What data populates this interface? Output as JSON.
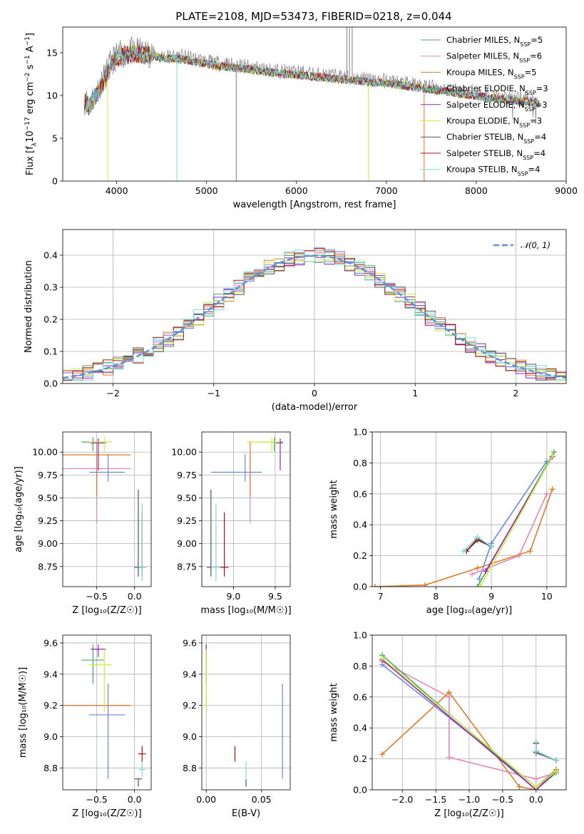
{
  "figure_title": "PLATE=2108, MJD=53473, FIBERID=0218, z=0.044",
  "colors": {
    "Chabrier MILES": "#6688dd",
    "Salpeter MILES": "#e088b8",
    "Kroupa MILES": "#e07828",
    "Chabrier ELODIE": "#44aa66",
    "Salpeter ELODIE": "#9922bb",
    "Kroupa ELODIE": "#ccee33",
    "Chabrier STELIB": "#555555",
    "Salpeter STELIB": "#aa1111",
    "Kroupa STELIB": "#77dddd",
    "data": "#808080",
    "gaussian": "#6090d8"
  },
  "chart_data": [
    {
      "panel": "spectrum",
      "type": "line",
      "title": "PLATE=2108, MJD=53473, FIBERID=0218, z=0.044",
      "xlabel": "wavelength [Angstrom, rest frame]",
      "ylabel_parts": [
        "Flux [f",
        "λ",
        "10",
        "−17",
        " erg cm",
        "−2",
        " s",
        "−1",
        " A",
        "−1",
        "]"
      ],
      "xlim": [
        3400,
        9000
      ],
      "ylim": [
        0,
        18
      ],
      "xticks": [
        4000,
        5000,
        6000,
        7000,
        8000,
        9000
      ],
      "yticks": [
        0,
        5,
        10,
        15
      ],
      "grid": false,
      "legend_position": "top-right",
      "legend": [
        {
          "name": "Chabrier MILES",
          "nssp": "5"
        },
        {
          "name": "Salpeter MILES",
          "nssp": "6"
        },
        {
          "name": "Kroupa MILES",
          "nssp": "5"
        },
        {
          "name": "Chabrier ELODIE",
          "nssp": "3"
        },
        {
          "name": "Salpeter ELODIE",
          "nssp": "3"
        },
        {
          "name": "Kroupa ELODIE",
          "nssp": "3"
        },
        {
          "name": "Chabrier STELIB",
          "nssp": "4"
        },
        {
          "name": "Salpeter STELIB",
          "nssp": "4"
        },
        {
          "name": "Kroupa STELIB",
          "nssp": "4"
        }
      ],
      "continuum": {
        "x": [
          3650,
          3700,
          3800,
          3850,
          3900,
          3950,
          4000,
          4100,
          4200,
          4300,
          4400,
          4500,
          4700,
          4900,
          5100,
          5300,
          5500,
          5700,
          5900,
          6100,
          6300,
          6500,
          6700,
          6900,
          7100,
          7300,
          7500,
          7700,
          7900,
          8100,
          8300,
          8500,
          8700
        ],
        "y": [
          9.5,
          9.0,
          11.0,
          11.8,
          13.0,
          14.0,
          14.6,
          15.0,
          15.2,
          15.0,
          15.0,
          14.6,
          14.6,
          14.2,
          13.8,
          13.6,
          13.3,
          13.0,
          12.8,
          12.6,
          12.4,
          12.2,
          12.0,
          11.8,
          11.6,
          11.3,
          11.0,
          10.7,
          10.4,
          10.1,
          9.9,
          9.6,
          9.4
        ]
      },
      "model_drops": {
        "Kroupa ELODIE": [
          3900,
          6800
        ],
        "Kroupa STELIB": [
          4670
        ],
        "Kroupa MILES": [
          7420
        ]
      },
      "data_spikes": [
        6560,
        6590,
        6620,
        5330
      ]
    },
    {
      "panel": "residuals",
      "type": "histogram",
      "xlabel": "(data-model)/error",
      "ylabel": "Normed distribution",
      "xlim": [
        -2.5,
        2.5
      ],
      "ylim": [
        0,
        0.48
      ],
      "xticks": [
        -2,
        -1,
        0,
        1,
        2
      ],
      "yticks": [
        0.0,
        0.1,
        0.2,
        0.3,
        0.4
      ],
      "grid": true,
      "legend_position": "top-right",
      "legend_label": "𝒩(0, 1)",
      "bin_width": 0.1
    },
    {
      "panel": "age-vs-Z",
      "type": "scatter",
      "xlabel": "Z [log₁₀(Z/Z☉)]",
      "ylabel": "age  [log₁₀(age/yr)]",
      "xlim": [
        -0.95,
        0.22
      ],
      "ylim": [
        8.53,
        10.22
      ],
      "xticks": [
        -0.5,
        0.0
      ],
      "yticks": [
        8.75,
        9.0,
        9.25,
        9.5,
        9.75,
        10.0
      ],
      "grid": true
    },
    {
      "panel": "age-vs-mass",
      "type": "scatter",
      "xlabel": "mass [log₁₀(M/M☉)]",
      "xlim": [
        8.62,
        9.68
      ],
      "ylim": [
        8.53,
        10.22
      ],
      "xticks": [
        9.0,
        9.5
      ],
      "yticks": [
        8.75,
        9.0,
        9.25,
        9.5,
        9.75,
        10.0
      ],
      "grid": true
    },
    {
      "panel": "weight-vs-age",
      "type": "line",
      "xlabel": "age  [log₁₀(age/yr)]",
      "ylabel": "mass weight",
      "xlim": [
        6.85,
        10.35
      ],
      "ylim": [
        0,
        1
      ],
      "xticks": [
        7,
        8,
        9,
        10
      ],
      "yticks": [
        0.0,
        0.2,
        0.4,
        0.6,
        0.8,
        1.0
      ],
      "grid": true
    },
    {
      "panel": "mass-vs-Z",
      "type": "scatter",
      "xlabel": "Z [log₁₀(Z/Z☉)]",
      "ylabel": "mass [log₁₀(M/M☉)]",
      "xlim": [
        -0.95,
        0.22
      ],
      "ylim": [
        8.66,
        9.65
      ],
      "xticks": [
        -0.5,
        0.0
      ],
      "yticks": [
        8.8,
        9.0,
        9.2,
        9.4,
        9.6
      ],
      "grid": true
    },
    {
      "panel": "mass-vs-EBV",
      "type": "scatter",
      "xlabel": "E(B-V)",
      "xlim": [
        -0.004,
        0.076
      ],
      "ylim": [
        8.66,
        9.65
      ],
      "xticks": [
        0.0,
        0.05
      ],
      "yticks": [
        8.8,
        9.0,
        9.2,
        9.4,
        9.6
      ],
      "grid": true
    },
    {
      "panel": "weight-vs-Z",
      "type": "line",
      "xlabel": "Z [log₁₀(Z/Z☉)]",
      "ylabel": "mass weight",
      "xlim": [
        -2.45,
        0.45
      ],
      "ylim": [
        0,
        1
      ],
      "xticks": [
        -2.0,
        -1.5,
        -1.0,
        -0.5,
        0.0
      ],
      "yticks": [
        0.0,
        0.2,
        0.4,
        0.6,
        0.8,
        1.0
      ],
      "grid": true
    }
  ],
  "fits": [
    {
      "name": "Chabrier MILES",
      "Z": -0.35,
      "Zlo": 0.25,
      "Zhi": 0.22,
      "age": 9.78,
      "agelo": 0.1,
      "agehi": 0.2,
      "mass": 9.14,
      "masslo": 0.41,
      "masshi": 0.2,
      "ebv": 0.069,
      "ebvlo": 0.0,
      "ebvhi": 0.0,
      "w_age": [
        [
          8.78,
          0.05
        ],
        [
          9.0,
          0.28
        ],
        [
          10.0,
          0.81
        ]
      ],
      "w_Z": [
        [
          -2.3,
          0.81
        ],
        [
          0.0,
          0.02
        ],
        [
          0.3,
          0.13
        ]
      ]
    },
    {
      "name": "Salpeter MILES",
      "Z": -0.5,
      "Zlo": 0.45,
      "Zhi": 0.45,
      "age": 9.82,
      "agelo": 0.6,
      "agehi": 0.15,
      "mass": 9.2,
      "masslo": 0.0,
      "masshi": 0.0,
      "ebv": 0.072,
      "ebvlo": 0.0,
      "ebvhi": 0.0,
      "w_age": [
        [
          8.65,
          0.08
        ],
        [
          9.5,
          0.2
        ],
        [
          10.0,
          0.6
        ]
      ],
      "w_Z": [
        [
          -2.3,
          0.83
        ],
        [
          -1.3,
          0.6
        ],
        [
          -1.3,
          0.21
        ],
        [
          0.0,
          0.07
        ],
        [
          0.3,
          0.11
        ]
      ]
    },
    {
      "name": "Kroupa MILES",
      "Z": -0.5,
      "Zlo": 0.45,
      "Zhi": 0.45,
      "age": 9.97,
      "agelo": 0.45,
      "agehi": 0.15,
      "mass": 9.2,
      "masslo": 0.0,
      "masshi": 0.0,
      "ebv": 0.07,
      "ebvlo": 0.0,
      "ebvhi": 0.0,
      "w_age": [
        [
          6.9,
          0.0
        ],
        [
          7.8,
          0.01
        ],
        [
          8.75,
          0.12
        ],
        [
          9.7,
          0.23
        ],
        [
          10.1,
          0.63
        ]
      ],
      "w_Z": [
        [
          -2.3,
          0.23
        ],
        [
          -1.3,
          0.63
        ],
        [
          -0.25,
          0.02
        ],
        [
          0.0,
          0.0
        ],
        [
          0.3,
          0.13
        ]
      ]
    },
    {
      "name": "Chabrier ELODIE",
      "Z": -0.55,
      "Zlo": 0.15,
      "Zhi": 0.15,
      "age": 10.11,
      "agelo": 0.1,
      "agehi": 0.05,
      "mass": 9.49,
      "masslo": 0.15,
      "masshi": 0.1,
      "ebv": 0.0,
      "ebvlo": 0.0,
      "ebvhi": 0.0,
      "w_age": [
        [
          8.75,
          0.0
        ],
        [
          10.13,
          0.87
        ]
      ],
      "w_Z": [
        [
          -2.3,
          0.87
        ],
        [
          0.0,
          0.0
        ],
        [
          0.3,
          0.11
        ]
      ]
    },
    {
      "name": "Salpeter ELODIE",
      "Z": -0.48,
      "Zlo": 0.1,
      "Zhi": 0.1,
      "age": 10.1,
      "agelo": 0.3,
      "agehi": 0.05,
      "mass": 9.56,
      "masslo": 0.05,
      "masshi": 0.03,
      "ebv": 0.0,
      "ebvlo": 0.0,
      "ebvhi": 0.0,
      "w_age": [
        [
          8.9,
          0.1
        ],
        [
          10.1,
          0.84
        ]
      ],
      "w_Z": [
        [
          -2.3,
          0.84
        ],
        [
          0.0,
          0.0
        ],
        [
          0.3,
          0.12
        ]
      ]
    },
    {
      "name": "Kroupa ELODIE",
      "Z": -0.4,
      "Zlo": 0.2,
      "Zhi": 0.1,
      "age": 10.11,
      "agelo": 0.1,
      "agehi": 0.05,
      "mass": 9.46,
      "masslo": 0.3,
      "masshi": 0.1,
      "ebv": 0.0,
      "ebvlo": 0.0,
      "ebvhi": 0.0,
      "w_age": [
        [
          8.8,
          0.0
        ],
        [
          10.11,
          0.85
        ]
      ],
      "w_Z": [
        [
          -2.3,
          0.85
        ],
        [
          0.0,
          0.02
        ],
        [
          0.3,
          0.12
        ]
      ]
    },
    {
      "name": "Chabrier STELIB",
      "Z": 0.05,
      "Zlo": 0.05,
      "Zhi": 0.05,
      "age": 8.74,
      "agelo": 0.1,
      "agehi": 0.85,
      "mass": 8.73,
      "masslo": 0.05,
      "masshi": 0.0,
      "ebv": 0.036,
      "ebvlo": 0.0,
      "ebvhi": 0.0,
      "w_age": [
        [
          8.55,
          0.23
        ],
        [
          8.75,
          0.3
        ],
        [
          9.0,
          0.26
        ]
      ],
      "w_Z": [
        [
          0.0,
          0.3
        ],
        [
          0.0,
          0.24
        ],
        [
          0.3,
          0.19
        ]
      ]
    },
    {
      "name": "Salpeter STELIB",
      "Z": 0.1,
      "Zlo": 0.05,
      "Zhi": 0.05,
      "age": 8.74,
      "agelo": 0.1,
      "agehi": 0.6,
      "mass": 8.89,
      "masslo": 0.05,
      "masshi": 0.05,
      "ebv": 0.026,
      "ebvlo": 0.0,
      "ebvhi": 0.0,
      "w_age": [
        [
          8.55,
          0.23
        ],
        [
          8.75,
          0.31
        ],
        [
          9.0,
          0.26
        ]
      ],
      "w_Z": [
        [
          0.0,
          0.3
        ],
        [
          0.0,
          0.25
        ],
        [
          0.3,
          0.19
        ]
      ]
    },
    {
      "name": "Kroupa STELIB",
      "Z": 0.1,
      "Zlo": 0.05,
      "Zhi": 0.05,
      "age": 8.74,
      "agelo": 0.15,
      "agehi": 0.7,
      "mass": 8.79,
      "masslo": 0.05,
      "masshi": 0.05,
      "ebv": 0.036,
      "ebvlo": 0.0,
      "ebvhi": 0.0,
      "w_age": [
        [
          8.5,
          0.23
        ],
        [
          8.75,
          0.32
        ],
        [
          9.0,
          0.26
        ]
      ],
      "w_Z": [
        [
          0.0,
          0.31
        ],
        [
          0.0,
          0.25
        ],
        [
          0.3,
          0.19
        ]
      ]
    }
  ]
}
